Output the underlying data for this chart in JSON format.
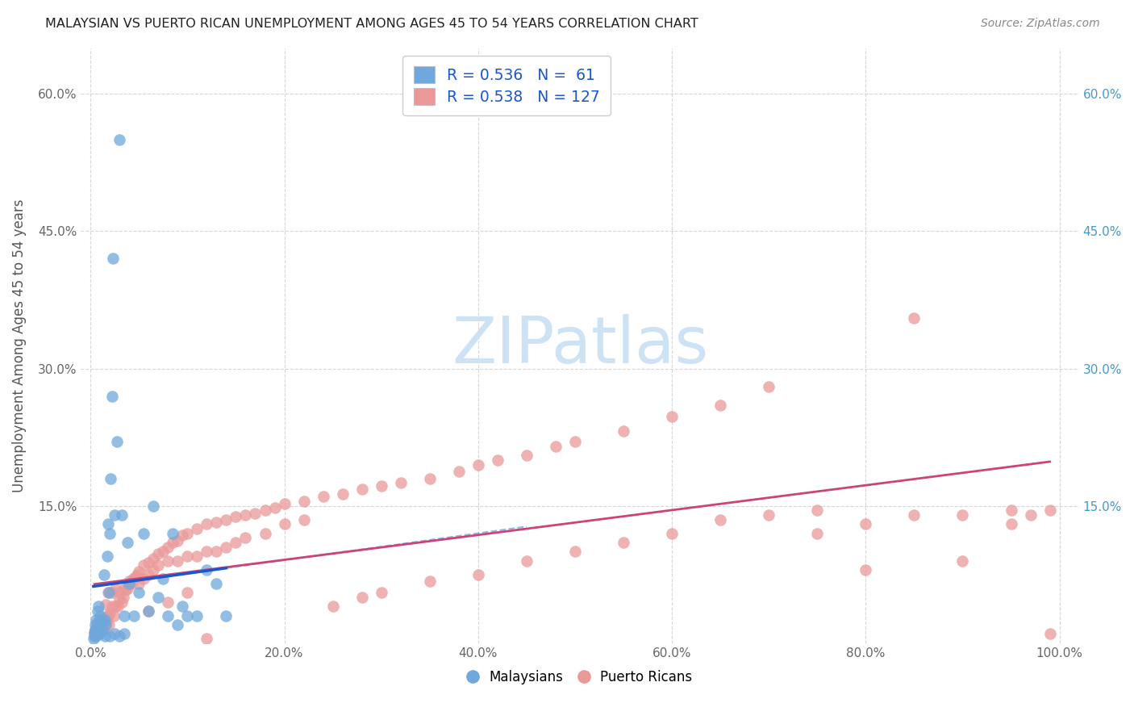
{
  "title": "MALAYSIAN VS PUERTO RICAN UNEMPLOYMENT AMONG AGES 45 TO 54 YEARS CORRELATION CHART",
  "source": "Source: ZipAtlas.com",
  "ylabel": "Unemployment Among Ages 45 to 54 years",
  "xlim": [
    0,
    1.0
  ],
  "ylim": [
    0,
    0.65
  ],
  "x_tick_vals": [
    0.0,
    0.2,
    0.4,
    0.6,
    0.8,
    1.0
  ],
  "x_tick_labels": [
    "0.0%",
    "20.0%",
    "40.0%",
    "60.0%",
    "80.0%",
    "100.0%"
  ],
  "y_tick_vals": [
    0.0,
    0.15,
    0.3,
    0.45,
    0.6
  ],
  "y_tick_labels": [
    "",
    "15.0%",
    "30.0%",
    "45.0%",
    "60.0%"
  ],
  "malaysian_R": 0.536,
  "malaysian_N": 61,
  "puertorican_R": 0.538,
  "puertorican_N": 127,
  "malaysian_color": "#6fa8dc",
  "puertorican_color": "#ea9999",
  "malaysian_line_color": "#1a56cc",
  "puertorican_line_color": "#cc4477",
  "right_tick_color": "#4499cc",
  "watermark_color": "#cde3f5",
  "malaysian_scatter_x": [
    0.003,
    0.004,
    0.004,
    0.005,
    0.005,
    0.005,
    0.006,
    0.006,
    0.006,
    0.007,
    0.007,
    0.007,
    0.008,
    0.008,
    0.008,
    0.009,
    0.009,
    0.01,
    0.01,
    0.01,
    0.011,
    0.012,
    0.013,
    0.014,
    0.015,
    0.016,
    0.017,
    0.018,
    0.019,
    0.02,
    0.021,
    0.022,
    0.023,
    0.025,
    0.027,
    0.03,
    0.032,
    0.035,
    0.038,
    0.04,
    0.045,
    0.05,
    0.055,
    0.06,
    0.065,
    0.07,
    0.075,
    0.08,
    0.085,
    0.09,
    0.095,
    0.1,
    0.11,
    0.12,
    0.13,
    0.14,
    0.015,
    0.02,
    0.025,
    0.03,
    0.035
  ],
  "malaysian_scatter_y": [
    0.005,
    0.008,
    0.012,
    0.01,
    0.015,
    0.02,
    0.008,
    0.015,
    0.025,
    0.01,
    0.02,
    0.035,
    0.01,
    0.022,
    0.04,
    0.015,
    0.025,
    0.01,
    0.018,
    0.03,
    0.02,
    0.015,
    0.025,
    0.075,
    0.025,
    0.02,
    0.095,
    0.13,
    0.055,
    0.12,
    0.18,
    0.27,
    0.42,
    0.14,
    0.22,
    0.55,
    0.14,
    0.03,
    0.11,
    0.065,
    0.03,
    0.055,
    0.12,
    0.035,
    0.15,
    0.05,
    0.07,
    0.03,
    0.12,
    0.02,
    0.04,
    0.03,
    0.03,
    0.08,
    0.065,
    0.03,
    0.008,
    0.008,
    0.01,
    0.008,
    0.01
  ],
  "puertorican_scatter_x": [
    0.004,
    0.005,
    0.006,
    0.007,
    0.008,
    0.009,
    0.01,
    0.011,
    0.012,
    0.013,
    0.014,
    0.015,
    0.016,
    0.017,
    0.018,
    0.019,
    0.02,
    0.022,
    0.024,
    0.026,
    0.028,
    0.03,
    0.032,
    0.034,
    0.036,
    0.038,
    0.04,
    0.042,
    0.044,
    0.046,
    0.048,
    0.05,
    0.055,
    0.06,
    0.065,
    0.07,
    0.075,
    0.08,
    0.085,
    0.09,
    0.095,
    0.1,
    0.11,
    0.12,
    0.13,
    0.14,
    0.15,
    0.16,
    0.17,
    0.18,
    0.19,
    0.2,
    0.22,
    0.24,
    0.26,
    0.28,
    0.3,
    0.32,
    0.35,
    0.38,
    0.4,
    0.42,
    0.45,
    0.48,
    0.5,
    0.55,
    0.6,
    0.65,
    0.7,
    0.75,
    0.8,
    0.85,
    0.9,
    0.95,
    0.97,
    0.99,
    0.016,
    0.018,
    0.022,
    0.026,
    0.03,
    0.035,
    0.04,
    0.045,
    0.05,
    0.055,
    0.06,
    0.065,
    0.07,
    0.08,
    0.09,
    0.1,
    0.11,
    0.12,
    0.13,
    0.14,
    0.15,
    0.16,
    0.18,
    0.2,
    0.22,
    0.25,
    0.28,
    0.3,
    0.35,
    0.4,
    0.45,
    0.5,
    0.55,
    0.6,
    0.65,
    0.7,
    0.75,
    0.8,
    0.85,
    0.9,
    0.95,
    0.99,
    0.06,
    0.08,
    0.1,
    0.12,
    0.005,
    0.007,
    0.009,
    0.011,
    0.013,
    0.015
  ],
  "puertorican_scatter_y": [
    0.01,
    0.015,
    0.01,
    0.02,
    0.012,
    0.02,
    0.015,
    0.025,
    0.018,
    0.022,
    0.015,
    0.02,
    0.028,
    0.025,
    0.03,
    0.02,
    0.032,
    0.04,
    0.03,
    0.04,
    0.04,
    0.048,
    0.045,
    0.05,
    0.058,
    0.06,
    0.068,
    0.065,
    0.07,
    0.072,
    0.075,
    0.078,
    0.085,
    0.088,
    0.092,
    0.098,
    0.1,
    0.105,
    0.11,
    0.112,
    0.118,
    0.12,
    0.125,
    0.13,
    0.132,
    0.135,
    0.138,
    0.14,
    0.142,
    0.145,
    0.148,
    0.152,
    0.155,
    0.16,
    0.163,
    0.168,
    0.172,
    0.175,
    0.18,
    0.188,
    0.195,
    0.2,
    0.205,
    0.215,
    0.22,
    0.232,
    0.248,
    0.26,
    0.28,
    0.12,
    0.13,
    0.14,
    0.09,
    0.13,
    0.14,
    0.145,
    0.042,
    0.055,
    0.055,
    0.06,
    0.055,
    0.06,
    0.065,
    0.07,
    0.065,
    0.07,
    0.075,
    0.08,
    0.085,
    0.09,
    0.09,
    0.095,
    0.095,
    0.1,
    0.1,
    0.105,
    0.11,
    0.115,
    0.12,
    0.13,
    0.135,
    0.04,
    0.05,
    0.055,
    0.068,
    0.075,
    0.09,
    0.1,
    0.11,
    0.12,
    0.135,
    0.14,
    0.145,
    0.08,
    0.355,
    0.14,
    0.145,
    0.01,
    0.035,
    0.045,
    0.055,
    0.005,
    0.008,
    0.01,
    0.012,
    0.015,
    0.018
  ]
}
